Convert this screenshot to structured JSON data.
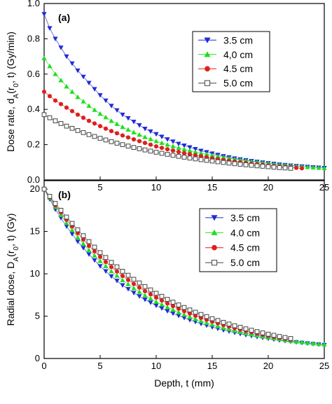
{
  "chart_data": [
    {
      "type": "scatter",
      "panel_label": "(a)",
      "xlabel": "",
      "ylabel": "Dose rate, d",
      "ylabel_sub": "A",
      "ylabel_mid": "(r",
      "ylabel_sub2": "0",
      "ylabel_tail": ", t) (Gy/min)",
      "xlim": [
        0,
        25
      ],
      "ylim": [
        0.0,
        1.0
      ],
      "xticks": [
        "5",
        "10",
        "15",
        "20",
        "25"
      ],
      "yticks": [
        "0.0",
        "0.2",
        "0.4",
        "0.6",
        "0.8",
        "1.0"
      ],
      "legend_position": "top-right",
      "series": [
        {
          "name": "3.5 cm",
          "marker": "triangle-down",
          "color": "#1f2bd6",
          "line": [
            [
              0,
              0.94
            ],
            [
              0.5,
              0.86
            ],
            [
              1,
              0.8
            ],
            [
              2,
              0.7
            ],
            [
              3,
              0.62
            ],
            [
              4,
              0.55
            ],
            [
              5,
              0.48
            ],
            [
              6,
              0.42
            ],
            [
              7,
              0.37
            ],
            [
              8,
              0.33
            ],
            [
              9,
              0.29
            ],
            [
              10,
              0.26
            ],
            [
              11,
              0.23
            ],
            [
              12,
              0.205
            ],
            [
              13,
              0.185
            ],
            [
              14,
              0.165
            ],
            [
              15,
              0.15
            ],
            [
              16,
              0.135
            ],
            [
              17,
              0.122
            ],
            [
              18,
              0.112
            ],
            [
              19,
              0.103
            ],
            [
              20,
              0.095
            ],
            [
              21,
              0.088
            ],
            [
              22,
              0.082
            ],
            [
              23,
              0.077
            ],
            [
              24,
              0.072
            ],
            [
              25,
              0.068
            ]
          ]
        },
        {
          "name": "4,0 cm",
          "marker": "triangle-up",
          "color": "#22dd22",
          "line": [
            [
              0,
              0.69
            ],
            [
              1,
              0.6
            ],
            [
              2,
              0.53
            ],
            [
              3,
              0.47
            ],
            [
              4,
              0.42
            ],
            [
              5,
              0.375
            ],
            [
              6,
              0.335
            ],
            [
              7,
              0.3
            ],
            [
              8,
              0.27
            ],
            [
              9,
              0.243
            ],
            [
              10,
              0.22
            ],
            [
              11,
              0.2
            ],
            [
              12,
              0.182
            ],
            [
              13,
              0.166
            ],
            [
              14,
              0.152
            ],
            [
              15,
              0.14
            ],
            [
              16,
              0.128
            ],
            [
              17,
              0.118
            ],
            [
              18,
              0.109
            ],
            [
              19,
              0.101
            ],
            [
              20,
              0.094
            ],
            [
              21,
              0.087
            ],
            [
              22,
              0.081
            ],
            [
              23,
              0.076
            ],
            [
              24,
              0.071
            ],
            [
              25,
              0.067
            ]
          ]
        },
        {
          "name": "4.5 cm",
          "marker": "circle",
          "color": "#dd1f1f",
          "line": [
            [
              0,
              0.5
            ],
            [
              1,
              0.45
            ],
            [
              2,
              0.41
            ],
            [
              3,
              0.37
            ],
            [
              4,
              0.335
            ],
            [
              5,
              0.305
            ],
            [
              6,
              0.277
            ],
            [
              7,
              0.252
            ],
            [
              8,
              0.23
            ],
            [
              9,
              0.21
            ],
            [
              10,
              0.19
            ],
            [
              11,
              0.174
            ],
            [
              12,
              0.159
            ],
            [
              13,
              0.146
            ],
            [
              14,
              0.134
            ],
            [
              15,
              0.123
            ],
            [
              16,
              0.113
            ],
            [
              17,
              0.104
            ],
            [
              18,
              0.096
            ],
            [
              19,
              0.089
            ],
            [
              20,
              0.082
            ],
            [
              21,
              0.076
            ],
            [
              22,
              0.071
            ],
            [
              23,
              0.066
            ]
          ]
        },
        {
          "name": "5.0 cm",
          "marker": "square-open",
          "color": "#444444",
          "line": [
            [
              0,
              0.37
            ],
            [
              1,
              0.335
            ],
            [
              2,
              0.305
            ],
            [
              3,
              0.28
            ],
            [
              4,
              0.257
            ],
            [
              5,
              0.236
            ],
            [
              6,
              0.217
            ],
            [
              7,
              0.2
            ],
            [
              8,
              0.184
            ],
            [
              9,
              0.17
            ],
            [
              10,
              0.157
            ],
            [
              11,
              0.145
            ],
            [
              12,
              0.134
            ],
            [
              13,
              0.124
            ],
            [
              14,
              0.115
            ],
            [
              15,
              0.107
            ],
            [
              16,
              0.099
            ],
            [
              17,
              0.092
            ],
            [
              18,
              0.086
            ],
            [
              19,
              0.08
            ],
            [
              20,
              0.075
            ],
            [
              21,
              0.07
            ],
            [
              22,
              0.066
            ]
          ]
        }
      ]
    },
    {
      "type": "scatter",
      "panel_label": "(b)",
      "xlabel": "Depth, t (mm)",
      "ylabel": "Radial dose, D",
      "ylabel_sub": "A",
      "ylabel_mid": "(r",
      "ylabel_sub2": "0",
      "ylabel_tail": ", t) (Gy)",
      "xlim": [
        0,
        25
      ],
      "ylim": [
        0,
        21
      ],
      "xticks": [
        "0",
        "5",
        "10",
        "15",
        "20",
        "25"
      ],
      "yticks": [
        "0",
        "5",
        "10",
        "15",
        "20"
      ],
      "legend_position": "top-right",
      "series": [
        {
          "name": "3.5 cm",
          "marker": "triangle-down",
          "color": "#1f2bd6",
          "line": [
            [
              0,
              20.0
            ],
            [
              1,
              17.6
            ],
            [
              2,
              15.6
            ],
            [
              3,
              13.8
            ],
            [
              4,
              12.3
            ],
            [
              5,
              10.9
            ],
            [
              6,
              9.7
            ],
            [
              7,
              8.65
            ],
            [
              8,
              7.75
            ],
            [
              9,
              6.95
            ],
            [
              10,
              6.25
            ],
            [
              11,
              5.6
            ],
            [
              12,
              5.05
            ],
            [
              13,
              4.55
            ],
            [
              14,
              4.1
            ],
            [
              15,
              3.7
            ],
            [
              16,
              3.35
            ],
            [
              17,
              3.05
            ],
            [
              18,
              2.78
            ],
            [
              19,
              2.55
            ],
            [
              20,
              2.35
            ],
            [
              21,
              2.15
            ],
            [
              22,
              2.0
            ],
            [
              23,
              1.85
            ],
            [
              24,
              1.72
            ],
            [
              25,
              1.6
            ]
          ]
        },
        {
          "name": "4.0 cm",
          "marker": "triangle-up",
          "color": "#22dd22",
          "line": [
            [
              0,
              20.0
            ],
            [
              1,
              17.9
            ],
            [
              2,
              16.0
            ],
            [
              3,
              14.3
            ],
            [
              4,
              12.8
            ],
            [
              5,
              11.5
            ],
            [
              6,
              10.3
            ],
            [
              7,
              9.25
            ],
            [
              8,
              8.3
            ],
            [
              9,
              7.45
            ],
            [
              10,
              6.7
            ],
            [
              11,
              6.05
            ],
            [
              12,
              5.45
            ],
            [
              13,
              4.9
            ],
            [
              14,
              4.42
            ],
            [
              15,
              4.0
            ],
            [
              16,
              3.62
            ],
            [
              17,
              3.28
            ],
            [
              18,
              2.98
            ],
            [
              19,
              2.72
            ],
            [
              20,
              2.48
            ],
            [
              21,
              2.27
            ],
            [
              22,
              2.08
            ],
            [
              23,
              1.92
            ],
            [
              24,
              1.78
            ],
            [
              25,
              1.65
            ]
          ]
        },
        {
          "name": "4.5 cm",
          "marker": "circle",
          "color": "#dd1f1f",
          "line": [
            [
              0,
              20.0
            ],
            [
              1,
              18.1
            ],
            [
              2,
              16.4
            ],
            [
              3,
              14.8
            ],
            [
              4,
              13.3
            ],
            [
              5,
              12.0
            ],
            [
              6,
              10.8
            ],
            [
              7,
              9.75
            ],
            [
              8,
              8.8
            ],
            [
              9,
              7.95
            ],
            [
              10,
              7.2
            ],
            [
              11,
              6.5
            ],
            [
              12,
              5.88
            ],
            [
              13,
              5.3
            ],
            [
              14,
              4.8
            ],
            [
              15,
              4.35
            ],
            [
              16,
              3.95
            ],
            [
              17,
              3.58
            ],
            [
              18,
              3.25
            ],
            [
              19,
              2.95
            ],
            [
              20,
              2.68
            ],
            [
              21,
              2.44
            ],
            [
              22,
              2.22
            ]
          ]
        },
        {
          "name": "5.0 cm",
          "marker": "square-open",
          "color": "#444444",
          "line": [
            [
              0,
              20.0
            ],
            [
              1,
              18.3
            ],
            [
              2,
              16.7
            ],
            [
              3,
              15.2
            ],
            [
              4,
              13.8
            ],
            [
              5,
              12.5
            ],
            [
              6,
              11.35
            ],
            [
              7,
              10.3
            ],
            [
              8,
              9.35
            ],
            [
              9,
              8.5
            ],
            [
              10,
              7.7
            ],
            [
              11,
              6.98
            ],
            [
              12,
              6.32
            ],
            [
              13,
              5.73
            ],
            [
              14,
              5.2
            ],
            [
              15,
              4.7
            ],
            [
              16,
              4.27
            ],
            [
              17,
              3.87
            ],
            [
              18,
              3.5
            ],
            [
              19,
              3.17
            ],
            [
              20,
              2.87
            ],
            [
              21,
              2.6
            ],
            [
              22,
              2.36
            ]
          ]
        }
      ]
    }
  ]
}
